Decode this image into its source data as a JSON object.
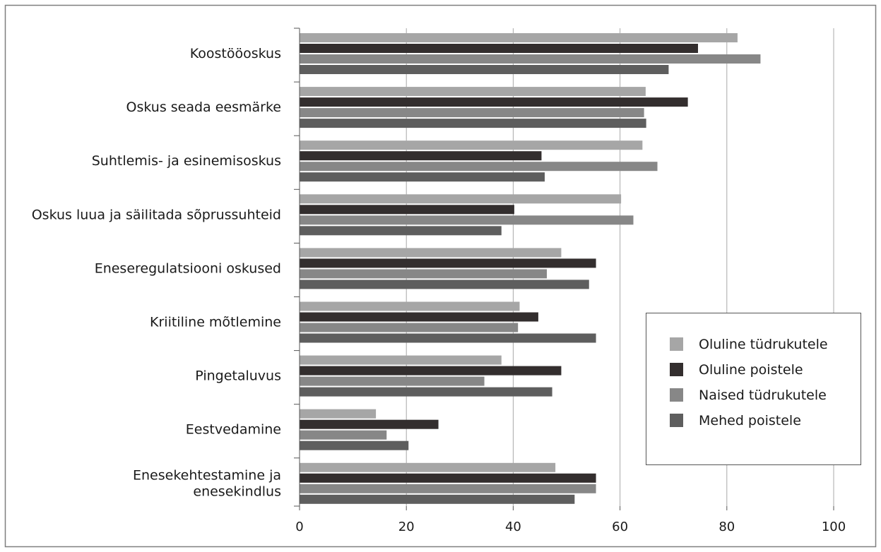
{
  "chart_data": {
    "type": "bar",
    "orientation": "horizontal",
    "categories": [
      [
        "Koostööoskus"
      ],
      [
        "Oskus seada eesmärke"
      ],
      [
        "Suhtlemis- ja esinemisoskus"
      ],
      [
        "Oskus luua ja säilitada sõprussuhteid"
      ],
      [
        "Eneseregulatsiooni oskused"
      ],
      [
        "Kriitiline mõtlemine"
      ],
      [
        "Pingetaluvus"
      ],
      [
        "Eestvedamine"
      ],
      [
        "Enesekehtestamine ja",
        "enesekindlus"
      ]
    ],
    "series": [
      {
        "name": "Oluline tüdrukutele",
        "color": "#a6a6a6",
        "values": [
          82,
          64.8,
          64.2,
          60.2,
          49,
          41.2,
          37.8,
          14.3,
          47.9
        ]
      },
      {
        "name": "Oluline poistele",
        "color": "#332e2e",
        "values": [
          74.6,
          72.7,
          45.3,
          40.2,
          55.5,
          44.7,
          49,
          26,
          55.5
        ]
      },
      {
        "name": "Naised tüdrukutele",
        "color": "#878787",
        "values": [
          86.3,
          64.5,
          67,
          62.5,
          46.3,
          40.9,
          34.6,
          16.3,
          55.5
        ]
      },
      {
        "name": "Mehed poistele",
        "color": "#5e5e5e",
        "values": [
          69.1,
          64.9,
          45.9,
          37.8,
          54.2,
          55.5,
          47.3,
          20.4,
          51.5
        ]
      }
    ],
    "xlim": [
      0,
      100
    ],
    "xticks": [
      "0",
      "20",
      "40",
      "60",
      "80",
      "100"
    ],
    "grid": true,
    "legend_position": "bottom-right"
  }
}
